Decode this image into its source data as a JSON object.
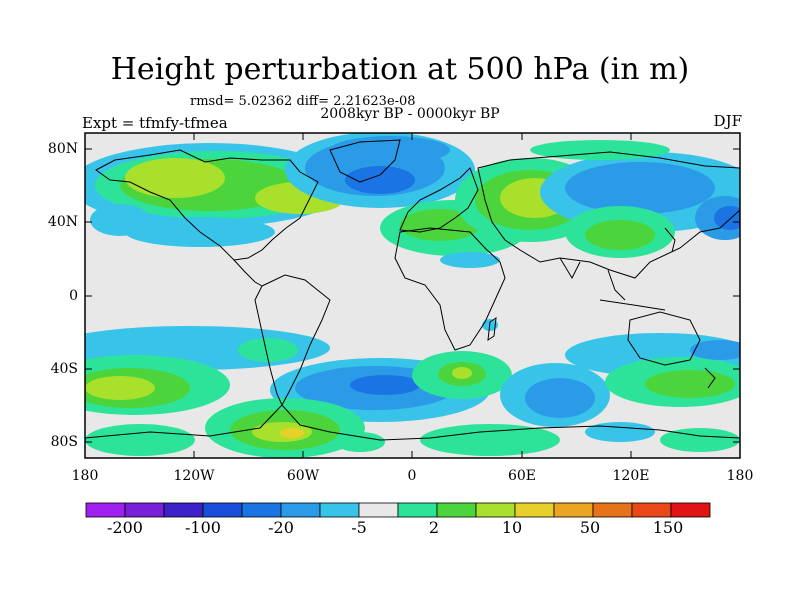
{
  "title": "Height perturbation at 500 hPa (in m)",
  "stats_line": "rmsd= 5.02362 diff= 2.21623e-08",
  "period_label": "2008kyr BP - 0000kyr BP",
  "experiment_label": "Expt = tfmfy-tfmea",
  "season_label": "DJF",
  "map": {
    "lat_ticks": [
      "80N",
      "40N",
      "0",
      "40S",
      "80S"
    ],
    "lon_ticks": [
      "180",
      "120W",
      "60W",
      "0",
      "60E",
      "120E",
      "180"
    ],
    "background_color": "#e8e8e8"
  },
  "colorbar": {
    "colors": [
      "#a020f0",
      "#7a1fd8",
      "#3c22c8",
      "#1a4fdc",
      "#1a74e4",
      "#2b9be8",
      "#38c4e8",
      "#e8e8e8",
      "#2de39a",
      "#4cd43c",
      "#a8e02c",
      "#e8d02c",
      "#eca423",
      "#e6731a",
      "#ea4818",
      "#e01414"
    ],
    "labels": [
      "-200",
      "-100",
      "-20",
      "-5",
      "2",
      "10",
      "50",
      "150"
    ]
  }
}
